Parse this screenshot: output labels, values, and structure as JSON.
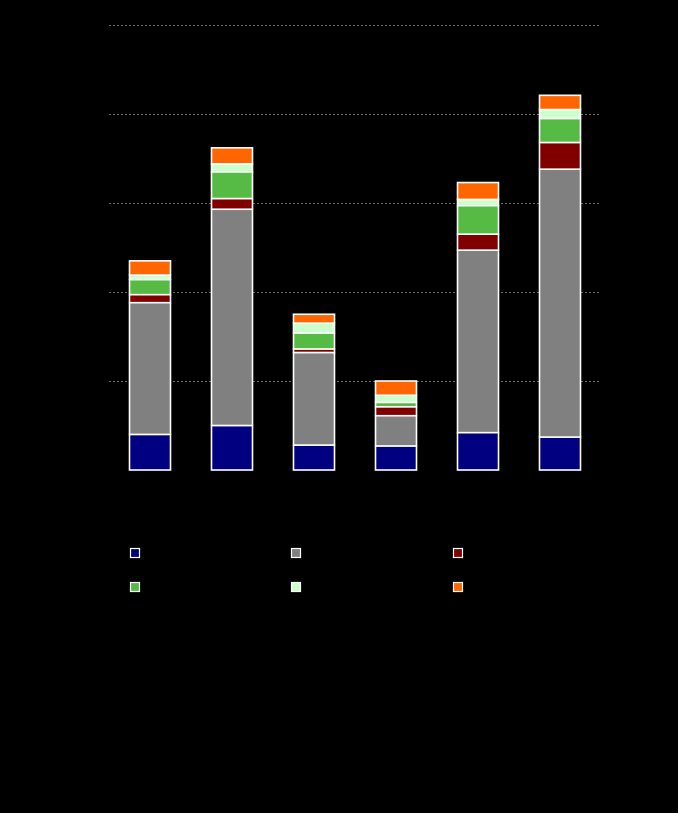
{
  "chart_data": {
    "type": "bar",
    "stacked": true,
    "categories": [
      "",
      "",
      "",
      "",
      "",
      ""
    ],
    "ylim": [
      0,
      5
    ],
    "y_gridlines": [
      1,
      2,
      3,
      4,
      5
    ],
    "grid": true,
    "legend_placement": "bottom",
    "series": [
      {
        "color": "#000080",
        "values": [
          0.4,
          0.5,
          0.28,
          0.27,
          0.42,
          0.37
        ]
      },
      {
        "color": "#808080",
        "values": [
          1.48,
          2.43,
          1.04,
          0.34,
          2.05,
          3.01
        ]
      },
      {
        "color": "#800000",
        "values": [
          0.09,
          0.12,
          0.04,
          0.1,
          0.18,
          0.3
        ]
      },
      {
        "color": "#55bb44",
        "values": [
          0.17,
          0.3,
          0.18,
          0.05,
          0.32,
          0.27
        ]
      },
      {
        "color": "#ccffcc",
        "values": [
          0.05,
          0.09,
          0.11,
          0.08,
          0.07,
          0.1
        ]
      },
      {
        "color": "#ff6600",
        "values": [
          0.16,
          0.18,
          0.1,
          0.16,
          0.19,
          0.16
        ]
      }
    ]
  }
}
